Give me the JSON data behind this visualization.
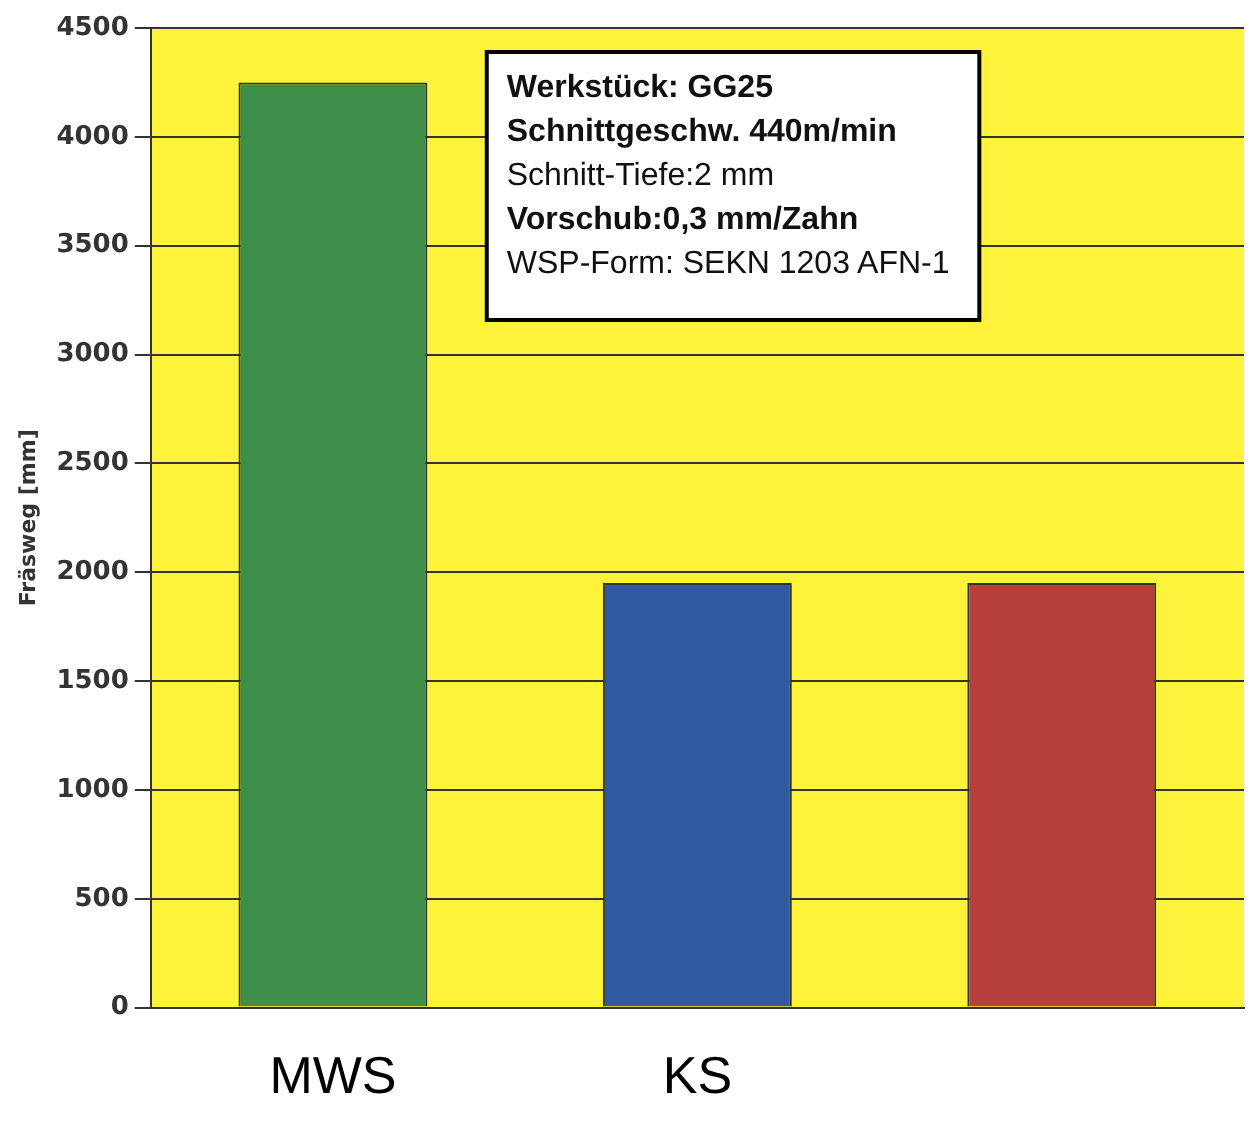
{
  "chart_data": {
    "type": "bar",
    "ylabel": "Fräsweg [mm]",
    "categories": [
      "MWS",
      "KS",
      null
    ],
    "values": [
      4250,
      1950,
      1950
    ],
    "colors": [
      "#3f8f4a",
      "#2f5aa0",
      "#b5403a"
    ],
    "ylim": [
      0,
      4500
    ],
    "yticks": [
      0,
      500,
      1000,
      1500,
      2000,
      2500,
      3000,
      3500,
      4000,
      4500
    ],
    "grid": "y",
    "legend": false,
    "annotations": [
      "Werkstück: GG25",
      "Schnittgeschw. 440m/min",
      "Schnitt-Tiefe:2 mm",
      "Vorschub:0,3 mm/Zahn",
      "WSP-Form: SEKN 1203 AFN-1"
    ]
  }
}
